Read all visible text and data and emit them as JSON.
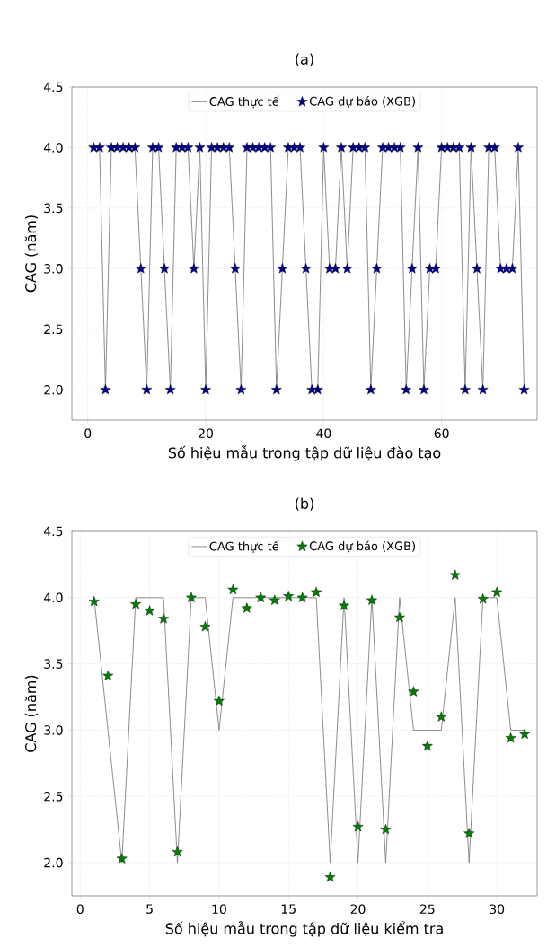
{
  "chart_data": [
    {
      "type": "line",
      "title": "(a)",
      "xlabel": "Số hiệu mẫu trong tập dữ liệu đào tạo",
      "ylabel": "CAG (năm)",
      "x": [
        1,
        2,
        3,
        4,
        5,
        6,
        7,
        8,
        9,
        10,
        11,
        12,
        13,
        14,
        15,
        16,
        17,
        18,
        19,
        20,
        21,
        22,
        23,
        24,
        25,
        26,
        27,
        28,
        29,
        30,
        31,
        32,
        33,
        34,
        35,
        36,
        37,
        38,
        39,
        40,
        41,
        42,
        43,
        44,
        45,
        46,
        47,
        48,
        49,
        50,
        51,
        52,
        53,
        54,
        55,
        56,
        57,
        58,
        59,
        60,
        61,
        62,
        63,
        64,
        65,
        66,
        67,
        68,
        69,
        70,
        71,
        72,
        73,
        74
      ],
      "series": [
        {
          "name": "CAG thực tế",
          "marker": "none",
          "color": "#808080",
          "values": [
            4,
            4,
            2,
            4,
            4,
            4,
            4,
            4,
            3,
            2,
            4,
            4,
            3,
            2,
            4,
            4,
            4,
            3,
            4,
            2,
            4,
            4,
            4,
            4,
            3,
            2,
            4,
            4,
            4,
            4,
            4,
            2,
            3,
            4,
            4,
            4,
            3,
            2,
            2,
            4,
            3,
            3,
            4,
            3,
            4,
            4,
            4,
            2,
            3,
            4,
            4,
            4,
            4,
            2,
            3,
            4,
            2,
            3,
            3,
            4,
            4,
            4,
            4,
            2,
            4,
            3,
            2,
            4,
            4,
            3,
            3,
            3,
            4,
            2
          ]
        },
        {
          "name": "CAG dự báo (XGB)",
          "type": "scatter",
          "marker": "star",
          "color": "#00008b",
          "values": [
            4,
            4,
            2,
            4,
            4,
            4,
            4,
            4,
            3,
            2,
            4,
            4,
            3,
            2,
            4,
            4,
            4,
            3,
            4,
            2,
            4,
            4,
            4,
            4,
            3,
            2,
            4,
            4,
            4,
            4,
            4,
            2,
            3,
            4,
            4,
            4,
            3,
            2,
            2,
            4,
            3,
            3,
            4,
            3,
            4,
            4,
            4,
            2,
            3,
            4,
            4,
            4,
            4,
            2,
            3,
            4,
            2,
            3,
            3,
            4,
            4,
            4,
            4,
            2,
            4,
            3,
            2,
            4,
            4,
            3,
            3,
            3,
            4,
            2
          ]
        }
      ],
      "xlim": [
        -2.7,
        76.2
      ],
      "ylim": [
        1.75,
        4.5
      ],
      "xticks": [
        0,
        20,
        40,
        60
      ],
      "yticks": [
        {
          "value": 2,
          "label": "2.0"
        },
        2.5,
        {
          "value": 3,
          "label": "3.0"
        },
        3.5,
        {
          "value": 4,
          "label": "4.0"
        },
        4.5
      ],
      "grid": true,
      "legend": "top"
    },
    {
      "type": "line",
      "title": "(b)",
      "xlabel": "Số hiệu mẫu trong tập dữ liệu kiểm tra",
      "ylabel": "CAG (năm)",
      "x": [
        1,
        2,
        3,
        4,
        5,
        6,
        7,
        8,
        9,
        10,
        11,
        12,
        13,
        14,
        15,
        16,
        17,
        18,
        19,
        20,
        21,
        22,
        23,
        24,
        25,
        26,
        27,
        28,
        29,
        30,
        31,
        32
      ],
      "series": [
        {
          "name": "CAG thực tế",
          "marker": "none",
          "color": "#808080",
          "values": [
            4,
            3,
            2,
            4,
            4,
            4,
            2,
            4,
            4,
            3,
            4,
            4,
            4,
            4,
            4,
            4,
            4,
            2,
            4,
            2,
            4,
            2,
            4,
            3,
            3,
            3,
            4,
            2,
            4,
            4,
            3,
            3
          ]
        },
        {
          "name": "CAG dự báo (XGB)",
          "type": "scatter",
          "marker": "star",
          "color": "#008000",
          "values": [
            3.97,
            3.41,
            2.03,
            3.95,
            3.9,
            3.84,
            2.08,
            4.0,
            3.78,
            3.22,
            4.06,
            3.92,
            4.0,
            3.98,
            4.01,
            4.0,
            4.04,
            1.89,
            3.94,
            2.27,
            3.98,
            2.25,
            3.85,
            3.29,
            2.88,
            3.1,
            4.17,
            2.22,
            3.99,
            4.04,
            2.94,
            2.97
          ]
        }
      ],
      "xlim": [
        -0.6,
        32.9
      ],
      "ylim": [
        1.75,
        4.5
      ],
      "xticks": [
        0,
        5,
        10,
        15,
        20,
        25,
        30
      ],
      "yticks": [
        {
          "value": 2,
          "label": "2.0"
        },
        2.5,
        {
          "value": 3,
          "label": "3.0"
        },
        3.5,
        {
          "value": 4,
          "label": "4.0"
        },
        4.5
      ],
      "grid": true,
      "legend": "top"
    }
  ]
}
